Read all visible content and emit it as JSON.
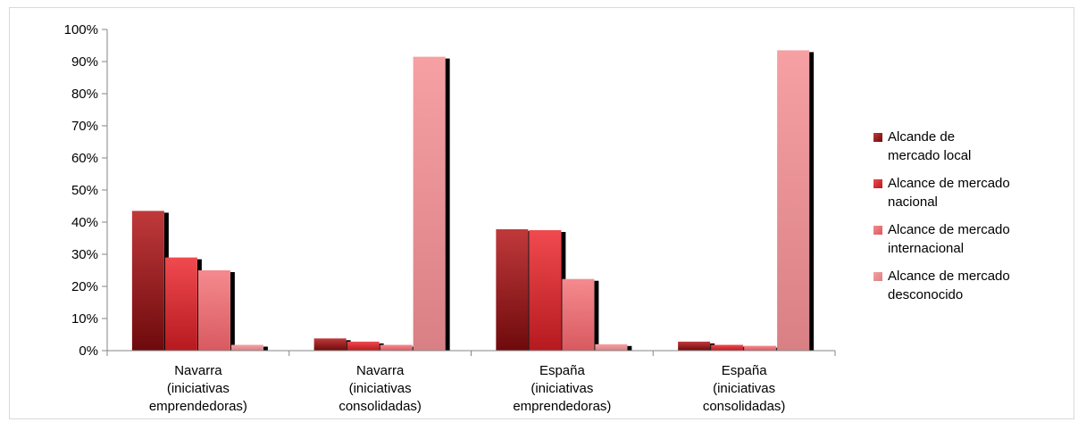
{
  "chart_data": {
    "type": "bar",
    "title": "",
    "xlabel": "",
    "ylabel": "",
    "ylim": [
      0,
      100
    ],
    "y_ticks": [
      "0%",
      "10%",
      "20%",
      "30%",
      "40%",
      "50%",
      "60%",
      "70%",
      "80%",
      "90%",
      "100%"
    ],
    "categories": [
      [
        "Navarra",
        "(iniciativas",
        "emprendedoras)"
      ],
      [
        "Navarra",
        "(iniciativas",
        "consolidadas)"
      ],
      [
        "España",
        "(iniciativas",
        "emprendedoras)"
      ],
      [
        "España",
        "(iniciativas",
        "consolidadas)"
      ]
    ],
    "series": [
      {
        "name": "Alcande de mercado local",
        "legend_lines": [
          "Alcande de",
          "mercado local"
        ],
        "color": "#c0393b",
        "color_dark": "#6e0a0c",
        "values": [
          43.5,
          3.8,
          37.8,
          2.8
        ]
      },
      {
        "name": "Alcance de mercado nacional",
        "legend_lines": [
          "Alcance de mercado",
          "nacional"
        ],
        "color": "#f04a4f",
        "color_dark": "#b51a1f",
        "values": [
          29,
          2.8,
          37.5,
          1.8
        ]
      },
      {
        "name": "Alcance de mercado internacional",
        "legend_lines": [
          "Alcance de mercado",
          "internacional"
        ],
        "color": "#f58a8e",
        "color_dark": "#d85a60",
        "values": [
          25,
          1.8,
          22.3,
          1.5
        ]
      },
      {
        "name": "Alcance de mercado desconocido",
        "legend_lines": [
          "Alcance de mercado",
          "desconocido"
        ],
        "color": "#f7a0a3",
        "color_dark": "#d88084",
        "values": [
          1.8,
          91.5,
          2,
          93.5
        ]
      }
    ],
    "grid": false,
    "legend_position": "right"
  }
}
